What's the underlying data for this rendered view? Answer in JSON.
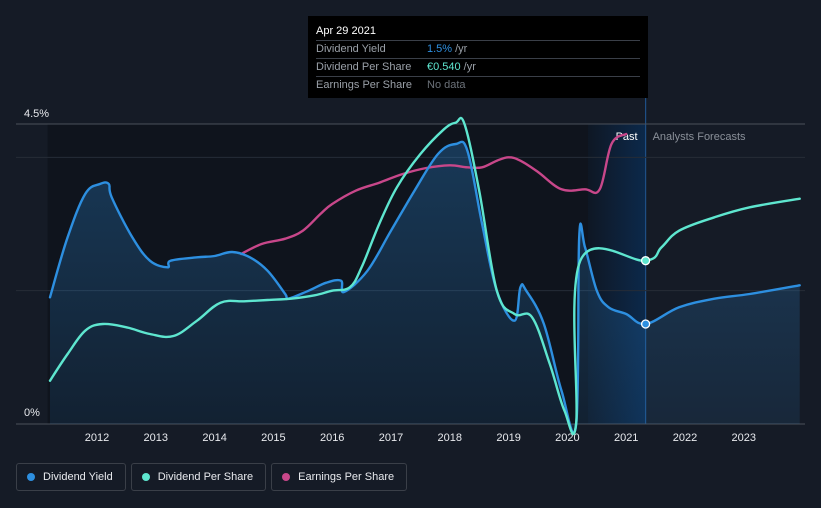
{
  "colors": {
    "dividend_yield": "#2d8fe0",
    "dividend_per_share": "#5ee6cf",
    "earnings_per_share": "#c8478a",
    "forecast_band": "#0c2a4d",
    "tooltip_yield": "#2d8fe0",
    "tooltip_dps": "#5ee6cf"
  },
  "tooltip": {
    "date": "Apr 29 2021",
    "rows": [
      {
        "name": "Dividend Yield",
        "value": "1.5%",
        "unit": "/yr"
      },
      {
        "name": "Dividend Per Share",
        "value": "€0.540",
        "unit": "/yr"
      },
      {
        "name": "Earnings Per Share",
        "value": "No data",
        "unit": ""
      }
    ]
  },
  "chart_data": {
    "type": "line",
    "x_range": [
      2011.2,
      2023.95
    ],
    "y_range": [
      0,
      4.5
    ],
    "y_ticks": [
      {
        "value": 4.5,
        "label": "4.5%"
      },
      {
        "value": 0,
        "label": "0%"
      }
    ],
    "x_ticks": [
      "2012",
      "2013",
      "2014",
      "2015",
      "2016",
      "2017",
      "2018",
      "2019",
      "2020",
      "2021",
      "2022",
      "2023"
    ],
    "past_label": "Past",
    "forecast_label": "Analysts Forecasts",
    "forecast_start": 2021.33,
    "highlight_band": [
      2020.35,
      2021.33
    ],
    "series": [
      {
        "key": "dividend_yield",
        "name": "Dividend Yield",
        "unit": "%",
        "marker_at": 2021.33,
        "points": [
          [
            2011.2,
            1.9
          ],
          [
            2011.5,
            2.8
          ],
          [
            2011.8,
            3.45
          ],
          [
            2012.05,
            3.6
          ],
          [
            2012.2,
            3.6
          ],
          [
            2012.25,
            3.4
          ],
          [
            2012.6,
            2.8
          ],
          [
            2012.9,
            2.45
          ],
          [
            2013.2,
            2.35
          ],
          [
            2013.25,
            2.45
          ],
          [
            2013.7,
            2.5
          ],
          [
            2014.0,
            2.52
          ],
          [
            2014.3,
            2.58
          ],
          [
            2014.6,
            2.5
          ],
          [
            2014.9,
            2.3
          ],
          [
            2015.2,
            1.95
          ],
          [
            2015.25,
            1.88
          ],
          [
            2015.6,
            2.0
          ],
          [
            2015.9,
            2.12
          ],
          [
            2016.15,
            2.15
          ],
          [
            2016.2,
            1.98
          ],
          [
            2016.6,
            2.3
          ],
          [
            2017.0,
            2.9
          ],
          [
            2017.4,
            3.5
          ],
          [
            2017.8,
            4.05
          ],
          [
            2018.1,
            4.2
          ],
          [
            2018.3,
            4.1
          ],
          [
            2018.55,
            3.0
          ],
          [
            2018.8,
            2.0
          ],
          [
            2019.1,
            1.55
          ],
          [
            2019.2,
            2.05
          ],
          [
            2019.3,
            2.0
          ],
          [
            2019.6,
            1.5
          ],
          [
            2019.9,
            0.5
          ],
          [
            2020.15,
            0.0
          ],
          [
            2020.2,
            2.8
          ],
          [
            2020.3,
            2.65
          ],
          [
            2020.5,
            2.0
          ],
          [
            2020.7,
            1.75
          ],
          [
            2021.0,
            1.65
          ],
          [
            2021.33,
            1.5
          ],
          [
            2021.9,
            1.75
          ],
          [
            2022.5,
            1.88
          ],
          [
            2023.1,
            1.95
          ],
          [
            2023.95,
            2.08
          ]
        ]
      },
      {
        "key": "dividend_per_share",
        "name": "Dividend Per Share",
        "unit": "",
        "marker_at": 2021.33,
        "points": [
          [
            2011.2,
            0.65
          ],
          [
            2011.5,
            1.05
          ],
          [
            2011.8,
            1.4
          ],
          [
            2012.1,
            1.5
          ],
          [
            2012.5,
            1.45
          ],
          [
            2012.9,
            1.35
          ],
          [
            2013.3,
            1.32
          ],
          [
            2013.7,
            1.55
          ],
          [
            2014.1,
            1.82
          ],
          [
            2014.5,
            1.84
          ],
          [
            2014.9,
            1.86
          ],
          [
            2015.3,
            1.88
          ],
          [
            2015.7,
            1.93
          ],
          [
            2016.0,
            2.0
          ],
          [
            2016.3,
            2.05
          ],
          [
            2016.5,
            2.35
          ],
          [
            2016.8,
            3.0
          ],
          [
            2017.1,
            3.55
          ],
          [
            2017.5,
            4.05
          ],
          [
            2017.9,
            4.42
          ],
          [
            2018.1,
            4.52
          ],
          [
            2018.25,
            4.5
          ],
          [
            2018.5,
            3.5
          ],
          [
            2018.8,
            2.0
          ],
          [
            2019.1,
            1.65
          ],
          [
            2019.4,
            1.6
          ],
          [
            2019.7,
            0.9
          ],
          [
            2019.95,
            0.2
          ],
          [
            2020.15,
            0.02
          ],
          [
            2020.22,
            2.45
          ],
          [
            2021.33,
            2.45
          ],
          [
            2021.6,
            2.65
          ],
          [
            2021.9,
            2.9
          ],
          [
            2022.5,
            3.1
          ],
          [
            2023.1,
            3.25
          ],
          [
            2023.95,
            3.38
          ]
        ]
      },
      {
        "key": "earnings_per_share",
        "name": "Earnings Per Share",
        "unit": "",
        "marker_at": null,
        "points": [
          [
            2014.45,
            2.55
          ],
          [
            2014.8,
            2.7
          ],
          [
            2015.2,
            2.78
          ],
          [
            2015.5,
            2.9
          ],
          [
            2015.8,
            3.15
          ],
          [
            2016.0,
            3.3
          ],
          [
            2016.4,
            3.5
          ],
          [
            2016.8,
            3.62
          ],
          [
            2017.2,
            3.75
          ],
          [
            2017.6,
            3.84
          ],
          [
            2018.0,
            3.88
          ],
          [
            2018.3,
            3.85
          ],
          [
            2018.55,
            3.85
          ],
          [
            2018.8,
            3.95
          ],
          [
            2019.0,
            4.0
          ],
          [
            2019.2,
            3.95
          ],
          [
            2019.5,
            3.78
          ],
          [
            2019.9,
            3.52
          ],
          [
            2020.3,
            3.52
          ],
          [
            2020.55,
            3.52
          ],
          [
            2020.75,
            4.2
          ],
          [
            2021.0,
            4.35
          ]
        ]
      }
    ]
  }
}
